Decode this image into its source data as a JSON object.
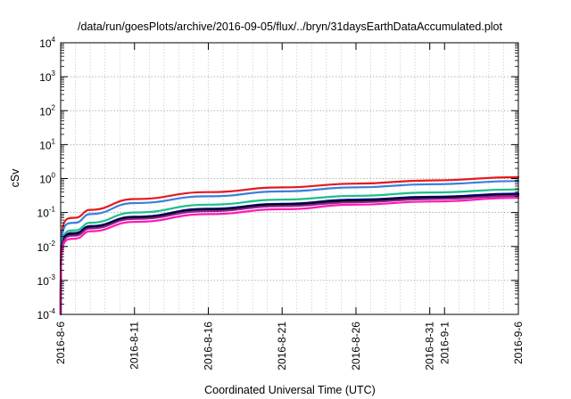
{
  "chart_data": {
    "type": "line",
    "title": "/data/run/goesPlots/archive/2016-09-05/flux/../bryn/31daysEarthDataAccumulated.plot",
    "xlabel": "Coordinated Universal Time (UTC)",
    "ylabel": "cSv",
    "y_scale": "log",
    "ylim": [
      0.0001,
      10000
    ],
    "xlim": [
      "2016-08-06",
      "2016-09-06"
    ],
    "grid": true,
    "legend": "none",
    "x_tick_labels": [
      "2016-8-6",
      "2016-8-11",
      "2016-8-16",
      "2016-8-21",
      "2016-8-26",
      "2016-8-31",
      "2016-9-1",
      "2016-9-6"
    ],
    "x_tick_dates": [
      "2016-08-06",
      "2016-08-11",
      "2016-08-16",
      "2016-08-21",
      "2016-08-26",
      "2016-08-31",
      "2016-09-01",
      "2016-09-06"
    ],
    "y_tick_exponents": [
      -4,
      -3,
      -2,
      -1,
      0,
      1,
      2,
      3,
      4
    ],
    "y_tick_base": "10",
    "x": [
      "2016-08-06",
      "2016-08-07",
      "2016-08-08",
      "2016-08-11",
      "2016-08-16",
      "2016-08-21",
      "2016-08-26",
      "2016-08-31",
      "2016-09-06"
    ],
    "series": [
      {
        "color": "#e41a1c",
        "values": [
          0.0002,
          0.07,
          0.12,
          0.25,
          0.4,
          0.55,
          0.71,
          0.88,
          1.1
        ]
      },
      {
        "color": "#3a7fe0",
        "values": [
          0.00015,
          0.05,
          0.09,
          0.19,
          0.3,
          0.42,
          0.55,
          0.68,
          0.85
        ]
      },
      {
        "color": "#1dbf8a",
        "values": [
          0.0001,
          0.03,
          0.05,
          0.1,
          0.17,
          0.24,
          0.31,
          0.39,
          0.48
        ]
      },
      {
        "color": "#00008b",
        "values": [
          0.0001,
          0.025,
          0.04,
          0.075,
          0.13,
          0.18,
          0.24,
          0.29,
          0.36
        ]
      },
      {
        "color": "#000000",
        "values": [
          0.0001,
          0.023,
          0.037,
          0.07,
          0.12,
          0.17,
          0.22,
          0.27,
          0.33
        ]
      },
      {
        "color": "#8b2090",
        "values": [
          0.0001,
          0.021,
          0.034,
          0.065,
          0.11,
          0.155,
          0.2,
          0.25,
          0.31
        ]
      },
      {
        "color": "#ff1ab3",
        "values": [
          0.0001,
          0.017,
          0.028,
          0.053,
          0.09,
          0.125,
          0.17,
          0.21,
          0.27
        ]
      }
    ]
  }
}
